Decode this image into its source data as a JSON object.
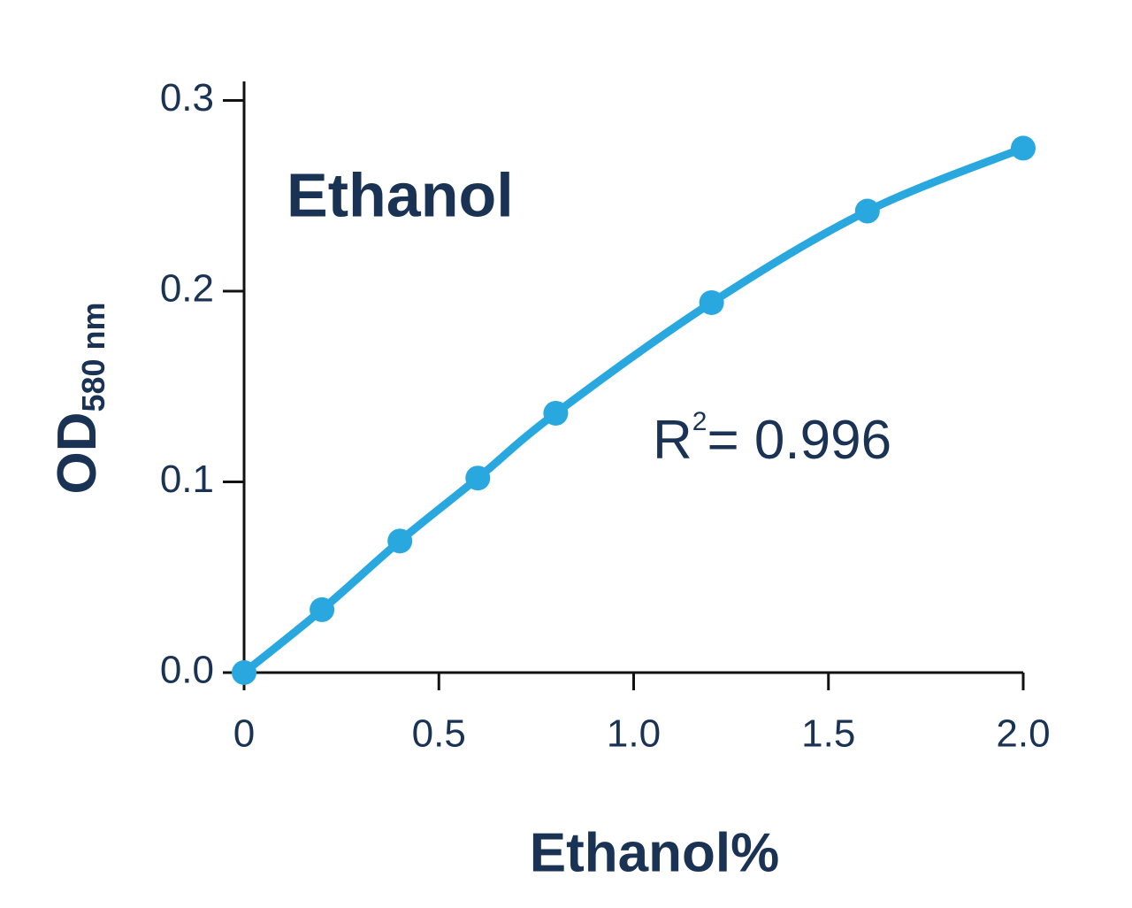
{
  "chart_data": {
    "type": "line",
    "title": "Ethanol",
    "x_label": "Ethanol%",
    "y_label": {
      "text": "OD",
      "subscript": "580 nm"
    },
    "annotation": {
      "text": "R",
      "superscript": "2",
      "suffix": "= 0.996"
    },
    "x": [
      0,
      0.2,
      0.4,
      0.6,
      0.8,
      1.2,
      1.6,
      2.0
    ],
    "series": [
      {
        "color": "#29a8e0",
        "values": [
          0,
          0.033,
          0.069,
          0.102,
          0.136,
          0.194,
          0.242,
          0.275
        ]
      }
    ],
    "xlim": [
      0,
      2.0
    ],
    "xticks": [
      0,
      0.5,
      {
        "value": 1.0,
        "label": "1.0"
      },
      1.5,
      {
        "value": 2.0,
        "label": "2.0"
      }
    ],
    "ylim": [
      0,
      0.31
    ],
    "yticks": [
      {
        "value": 0,
        "label": "0.0"
      },
      0.1,
      0.2,
      0.3
    ],
    "grid": false
  }
}
